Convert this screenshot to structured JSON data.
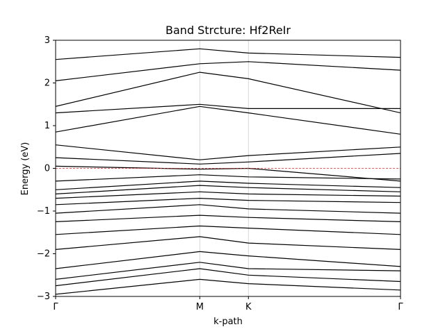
{
  "chart_data": {
    "type": "line",
    "title": "Band Strcture: Hf2ReIr",
    "xlabel": "k-path",
    "ylabel": "Energy (eV)",
    "ylim": [
      -3,
      3
    ],
    "yticks": [
      -3,
      -2,
      -1,
      0,
      1,
      2,
      3
    ],
    "ytick_labels": [
      "−3",
      "−2",
      "−1",
      "0",
      "1",
      "2",
      "3"
    ],
    "xlim": [
      0,
      1
    ],
    "high_symmetry_points": [
      {
        "label": "Γ",
        "x": 0.0
      },
      {
        "label": "M",
        "x": 0.418
      },
      {
        "label": "K",
        "x": 0.559
      },
      {
        "label": "Γ",
        "x": 1.0
      }
    ],
    "fermi_level": 0,
    "colors": {
      "bands": "#000000",
      "fermi": "#d62728",
      "vline": "#cccccc"
    },
    "grid": false,
    "bands": [
      {
        "x": [
          0.0,
          0.418,
          0.559,
          1.0
        ],
        "y": [
          -2.95,
          -2.6,
          -2.7,
          -2.85
        ]
      },
      {
        "x": [
          0.0,
          0.418,
          0.559,
          1.0
        ],
        "y": [
          -2.75,
          -2.35,
          -2.5,
          -2.65
        ]
      },
      {
        "x": [
          0.0,
          0.418,
          0.559,
          1.0
        ],
        "y": [
          -2.6,
          -2.2,
          -2.35,
          -2.4
        ]
      },
      {
        "x": [
          0.0,
          0.418,
          0.559,
          1.0
        ],
        "y": [
          -2.35,
          -1.95,
          -2.05,
          -2.3
        ]
      },
      {
        "x": [
          0.0,
          0.418,
          0.559,
          1.0
        ],
        "y": [
          -1.9,
          -1.6,
          -1.75,
          -1.9
        ]
      },
      {
        "x": [
          0.0,
          0.418,
          0.559,
          1.0
        ],
        "y": [
          -1.55,
          -1.35,
          -1.4,
          -1.55
        ]
      },
      {
        "x": [
          0.0,
          0.418,
          0.559,
          1.0
        ],
        "y": [
          -1.25,
          -1.1,
          -1.15,
          -1.25
        ]
      },
      {
        "x": [
          0.0,
          0.418,
          0.559,
          1.0
        ],
        "y": [
          -1.05,
          -0.85,
          -0.95,
          -1.05
        ]
      },
      {
        "x": [
          0.0,
          0.418,
          0.559,
          1.0
        ],
        "y": [
          -0.85,
          -0.7,
          -0.75,
          -0.8
        ]
      },
      {
        "x": [
          0.0,
          0.418,
          0.559,
          1.0
        ],
        "y": [
          -0.7,
          -0.55,
          -0.6,
          -0.65
        ]
      },
      {
        "x": [
          0.0,
          0.418,
          0.559,
          1.0
        ],
        "y": [
          -0.6,
          -0.4,
          -0.45,
          -0.55
        ]
      },
      {
        "x": [
          0.0,
          0.418,
          0.559,
          1.0
        ],
        "y": [
          -0.5,
          -0.3,
          -0.35,
          -0.45
        ]
      },
      {
        "x": [
          0.0,
          0.418,
          0.559,
          1.0
        ],
        "y": [
          -0.3,
          -0.15,
          -0.2,
          -0.25
        ]
      },
      {
        "x": [
          0.0,
          0.418,
          0.559,
          1.0
        ],
        "y": [
          0.05,
          -0.02,
          0.0,
          -0.3
        ]
      },
      {
        "x": [
          0.0,
          0.418,
          0.559,
          1.0
        ],
        "y": [
          0.25,
          0.1,
          0.15,
          0.35
        ]
      },
      {
        "x": [
          0.0,
          0.418,
          0.559,
          1.0
        ],
        "y": [
          0.55,
          0.2,
          0.3,
          0.5
        ]
      },
      {
        "x": [
          0.0,
          0.418,
          0.559,
          1.0
        ],
        "y": [
          0.85,
          1.45,
          1.3,
          0.8
        ]
      },
      {
        "x": [
          0.0,
          0.418,
          0.559,
          1.0
        ],
        "y": [
          1.3,
          1.5,
          1.4,
          1.4
        ]
      },
      {
        "x": [
          0.0,
          0.418,
          0.559,
          1.0
        ],
        "y": [
          1.45,
          2.25,
          2.1,
          1.3
        ]
      },
      {
        "x": [
          0.0,
          0.418,
          0.559,
          1.0
        ],
        "y": [
          2.05,
          2.45,
          2.5,
          2.3
        ]
      },
      {
        "x": [
          0.0,
          0.418,
          0.559,
          1.0
        ],
        "y": [
          2.55,
          2.8,
          2.7,
          2.6
        ]
      }
    ]
  }
}
